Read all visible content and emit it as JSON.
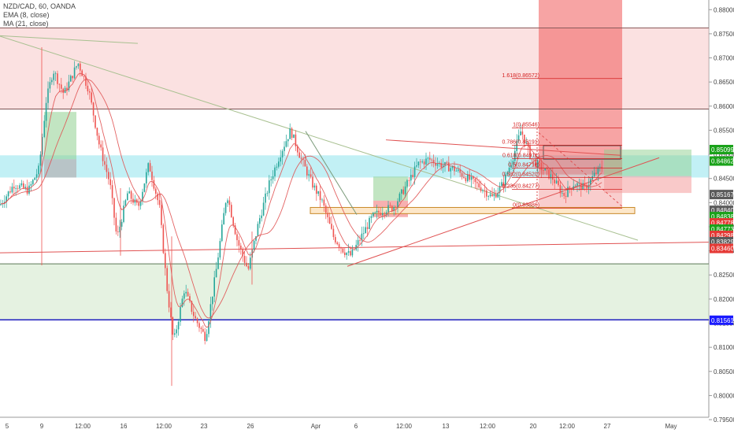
{
  "symbol": {
    "title": "NZD/CAD, 60, OANDA"
  },
  "indicators": [
    {
      "label": "EMA (8, close)",
      "color": "#e05252"
    },
    {
      "label": "MA (21, close)",
      "color": "#e05252"
    }
  ],
  "chart_data": {
    "type": "candlestick",
    "symbol": "NZD/CAD",
    "timeframe": "60",
    "broker": "OANDA",
    "ylim": [
      0.7955,
      0.882
    ],
    "price_ticks": [
      {
        "v": 0.88,
        "t": "0.88000"
      },
      {
        "v": 0.875,
        "t": "0.87500"
      },
      {
        "v": 0.87,
        "t": "0.87000"
      },
      {
        "v": 0.865,
        "t": "0.86500"
      },
      {
        "v": 0.86,
        "t": "0.86000"
      },
      {
        "v": 0.855,
        "t": "0.85500"
      },
      {
        "v": 0.85,
        "t": "0.85000"
      },
      {
        "v": 0.845,
        "t": "0.84500"
      },
      {
        "v": 0.84,
        "t": "0.84000"
      },
      {
        "v": 0.835,
        "t": "0.83500"
      },
      {
        "v": 0.83,
        "t": "0.83000"
      },
      {
        "v": 0.825,
        "t": "0.82500"
      },
      {
        "v": 0.82,
        "t": "0.82000"
      },
      {
        "v": 0.815,
        "t": "0.81500"
      },
      {
        "v": 0.81,
        "t": "0.81000"
      },
      {
        "v": 0.805,
        "t": "0.80500"
      },
      {
        "v": 0.8,
        "t": "0.80000"
      },
      {
        "v": 0.795,
        "t": "0.79500"
      }
    ],
    "time_ticks": [
      "5",
      "9",
      "12:00",
      "16",
      "12:00",
      "23",
      "26",
      "Apr",
      "6",
      "12:00",
      "13",
      "12:00",
      "20",
      "12:00",
      "27",
      "May"
    ],
    "price_labels": [
      {
        "v": 0.85099,
        "t": "0.85099",
        "bg": "#1aa21a"
      },
      {
        "v": 0.84862,
        "t": "0.84862",
        "bg": "#1aa21a"
      },
      {
        "v": 0.84167,
        "t": "0.85167",
        "bg": "#5a5a5a"
      },
      {
        "v": 0.8384,
        "t": "0.84840",
        "bg": "#5a5a5a"
      },
      {
        "v": 0.8371,
        "t": "0.84838",
        "bg": "#1aa21a"
      },
      {
        "v": 0.8358,
        "t": "0.84778",
        "bg": "#e53935"
      },
      {
        "v": 0.8345,
        "t": "0.84773",
        "bg": "#1aa21a"
      },
      {
        "v": 0.8332,
        "t": "0.84298",
        "bg": "#e53935"
      },
      {
        "v": 0.8319,
        "t": "0.83829",
        "bg": "#5a5a5a"
      },
      {
        "v": 0.8305,
        "t": "0.83460",
        "bg": "#e53935"
      },
      {
        "v": 0.81561,
        "t": "0.81561",
        "bg": "#1a1aff"
      }
    ],
    "fibonacci": [
      {
        "label": "1.618(0.86572)",
        "level": 0.86572
      },
      {
        "label": "1(0.85546)",
        "level": 0.85546
      },
      {
        "label": "0.786(0.85191)",
        "level": 0.85191
      },
      {
        "label": "0.618(0.84911)",
        "level": 0.84911
      },
      {
        "label": "0.5(0.84716)",
        "level": 0.84716
      },
      {
        "label": "0.382(0.84520)",
        "level": 0.8452
      },
      {
        "label": "0.236(0.84277)",
        "level": 0.84277
      },
      {
        "label": "0(0.83886)",
        "level": 0.83886
      }
    ],
    "zones": [
      {
        "kind": "supply",
        "from": 0.8594,
        "to": 0.8762,
        "color": "#f7c9c9"
      },
      {
        "kind": "demand",
        "from": 0.8157,
        "to": 0.8273,
        "color": "#cfe8c9"
      },
      {
        "kind": "range",
        "from": 0.8452,
        "to": 0.8498,
        "color": "#8fe3ec"
      }
    ],
    "horizontal_lines": [
      0.8762,
      0.8594,
      0.8273,
      0.8157
    ],
    "trendlines": [
      {
        "name": "descending",
        "x1": 0.0,
        "y1": 0.8745,
        "x2": 0.9,
        "y2": 0.8322,
        "color": "#a8c090"
      },
      {
        "name": "rising support",
        "x1": 0.49,
        "y1": 0.8268,
        "x2": 0.93,
        "y2": 0.8493,
        "color": "#e05252"
      },
      {
        "name": "lower support",
        "x1": 0.0,
        "y1": 0.8296,
        "x2": 1.0,
        "y2": 0.8318,
        "color": "#e05252"
      }
    ],
    "series": [
      {
        "name": "EMA (8, close)",
        "color": "#e05252"
      },
      {
        "name": "MA (21, close)",
        "color": "#e05252"
      }
    ],
    "path": [
      [
        0.0,
        0.8395
      ],
      [
        0.02,
        0.8438
      ],
      [
        0.04,
        0.8425
      ],
      [
        0.055,
        0.847
      ],
      [
        0.065,
        0.861
      ],
      [
        0.075,
        0.8675
      ],
      [
        0.09,
        0.8625
      ],
      [
        0.11,
        0.869
      ],
      [
        0.125,
        0.8635
      ],
      [
        0.14,
        0.852
      ],
      [
        0.155,
        0.844
      ],
      [
        0.165,
        0.8325
      ],
      [
        0.18,
        0.842
      ],
      [
        0.195,
        0.839
      ],
      [
        0.21,
        0.848
      ],
      [
        0.225,
        0.839
      ],
      [
        0.235,
        0.823
      ],
      [
        0.245,
        0.811
      ],
      [
        0.26,
        0.822
      ],
      [
        0.275,
        0.816
      ],
      [
        0.29,
        0.812
      ],
      [
        0.305,
        0.826
      ],
      [
        0.32,
        0.842
      ],
      [
        0.335,
        0.832
      ],
      [
        0.35,
        0.826
      ],
      [
        0.365,
        0.836
      ],
      [
        0.38,
        0.844
      ],
      [
        0.395,
        0.85
      ],
      [
        0.41,
        0.855
      ],
      [
        0.425,
        0.849
      ],
      [
        0.44,
        0.844
      ],
      [
        0.455,
        0.84
      ],
      [
        0.47,
        0.833
      ],
      [
        0.485,
        0.83
      ],
      [
        0.495,
        0.829
      ],
      [
        0.51,
        0.833
      ],
      [
        0.525,
        0.837
      ],
      [
        0.54,
        0.8385
      ],
      [
        0.555,
        0.839
      ],
      [
        0.575,
        0.844
      ],
      [
        0.59,
        0.848
      ],
      [
        0.605,
        0.849
      ],
      [
        0.62,
        0.848
      ],
      [
        0.64,
        0.847
      ],
      [
        0.66,
        0.845
      ],
      [
        0.68,
        0.843
      ],
      [
        0.695,
        0.841
      ],
      [
        0.71,
        0.844
      ],
      [
        0.725,
        0.85
      ],
      [
        0.735,
        0.855
      ],
      [
        0.75,
        0.849
      ],
      [
        0.765,
        0.847
      ],
      [
        0.78,
        0.845
      ],
      [
        0.795,
        0.8415
      ],
      [
        0.81,
        0.844
      ],
      [
        0.825,
        0.843
      ],
      [
        0.84,
        0.846
      ],
      [
        0.85,
        0.8475
      ]
    ]
  }
}
